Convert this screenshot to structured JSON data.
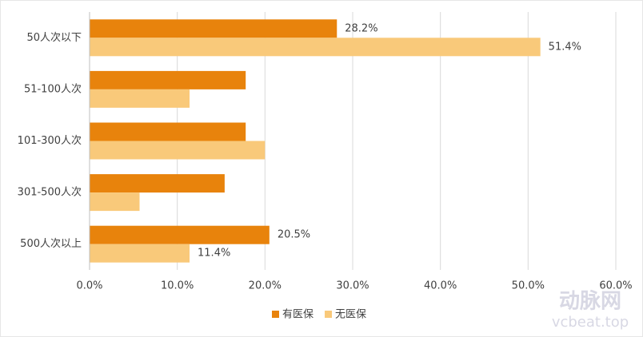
{
  "chart_data": {
    "type": "hbar",
    "categories": [
      "50人次以下",
      "51-100人次",
      "101-300人次",
      "301-500人次",
      "500人次以上"
    ],
    "series": [
      {
        "name": "有医保",
        "color": "#e8830c",
        "values": [
          28.2,
          17.8,
          17.8,
          15.4,
          20.5
        ],
        "value_labels": [
          "28.2%",
          null,
          null,
          null,
          "20.5%"
        ]
      },
      {
        "name": "无医保",
        "color": "#f9c97a",
        "values": [
          51.4,
          11.4,
          20.0,
          5.7,
          11.4
        ],
        "value_labels": [
          "51.4%",
          null,
          null,
          null,
          "11.4%"
        ]
      }
    ],
    "xlim": [
      0,
      60
    ],
    "xticks": [
      {
        "value": 0,
        "label": "0.0%"
      },
      {
        "value": 10,
        "label": "10.0%"
      },
      {
        "value": 20,
        "label": "20.0%"
      },
      {
        "value": 30,
        "label": "30.0%"
      },
      {
        "value": 40,
        "label": "40.0%"
      },
      {
        "value": 50,
        "label": "50.0%"
      },
      {
        "value": 60,
        "label": "60.0%"
      }
    ],
    "grid": true,
    "legend": "bottom"
  },
  "watermark": {
    "brand": "动脉网",
    "site": "vcbeat.top"
  }
}
